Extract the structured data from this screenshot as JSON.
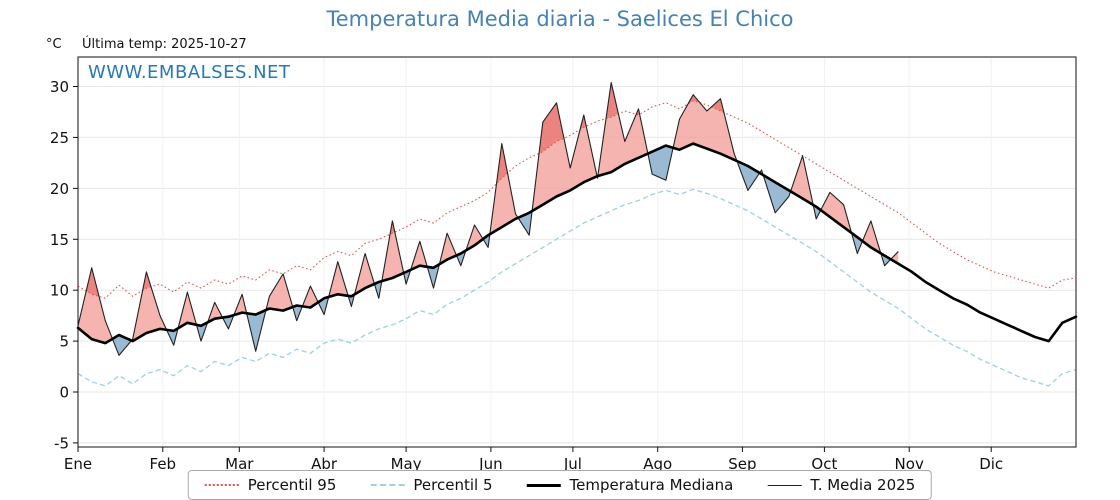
{
  "header": {
    "title": "Temperatura Media diaria - Saelices El Chico",
    "unit_label": "°C",
    "last_temp_label": "Última temp: 2025-10-27"
  },
  "watermark": "WWW.EMBALSES.NET",
  "legend": {
    "items": [
      {
        "label": "Percentil 95"
      },
      {
        "label": "Percentil 5"
      },
      {
        "label": "Temperatura Mediana"
      },
      {
        "label": "T. Media 2025"
      }
    ]
  },
  "colors": {
    "title": "#4682b4",
    "watermark": "#2878b8",
    "p95": "#d9534f",
    "p5": "#9ecfe3",
    "median": "#000000",
    "t2025": "#222222",
    "fill_above": "#f3a19b",
    "fill_above_p95": "#e25b55",
    "fill_below": "#8fb1cd",
    "grid_h": "#e7e7e7",
    "grid_v": "#f1f1f1",
    "frame": "#111111"
  },
  "chart_data": {
    "type": "line",
    "title": "Temperatura Media diaria - Saelices El Chico",
    "ylabel": "°C",
    "xlim_days": [
      0,
      365
    ],
    "ylim": [
      -5.4,
      32.9
    ],
    "y_ticks": [
      -5,
      0,
      5,
      10,
      15,
      20,
      25,
      30
    ],
    "x_tick_days": [
      0,
      31,
      59,
      90,
      120,
      151,
      181,
      212,
      243,
      273,
      304,
      334
    ],
    "x_tick_labels": [
      "Ene",
      "Feb",
      "Mar",
      "Abr",
      "May",
      "Jun",
      "Jul",
      "Ago",
      "Sep",
      "Oct",
      "Nov",
      "Dic"
    ],
    "sample_step_days": 5,
    "legend_position": "bottom",
    "grid": true,
    "series": [
      {
        "name": "Percentil 95",
        "style": "dotted-red",
        "values": [
          10.4,
          9.6,
          9.2,
          10.5,
          9.4,
          10.2,
          10.6,
          9.8,
          10.8,
          10.2,
          11.0,
          10.6,
          11.4,
          11.0,
          12.0,
          11.6,
          12.4,
          12.0,
          13.2,
          13.8,
          13.4,
          14.6,
          15.0,
          15.6,
          16.2,
          17.0,
          16.6,
          17.6,
          18.2,
          18.8,
          19.6,
          21.0,
          22.2,
          23.0,
          23.6,
          24.6,
          25.2,
          26.0,
          26.6,
          27.0,
          27.6,
          27.2,
          28.0,
          28.4,
          27.8,
          28.6,
          28.2,
          27.6,
          27.0,
          26.4,
          25.6,
          24.8,
          24.0,
          23.2,
          22.4,
          21.6,
          20.8,
          20.0,
          19.2,
          18.4,
          17.6,
          16.6,
          15.6,
          14.6,
          13.8,
          13.0,
          12.4,
          11.8,
          11.4,
          11.0,
          10.6,
          10.2,
          11.0,
          11.2
        ]
      },
      {
        "name": "Percentil 5",
        "style": "dashed-lightblue",
        "values": [
          1.8,
          1.0,
          0.6,
          1.6,
          0.8,
          1.8,
          2.2,
          1.6,
          2.6,
          2.0,
          3.0,
          2.6,
          3.4,
          3.0,
          3.8,
          3.4,
          4.2,
          3.8,
          4.8,
          5.2,
          4.8,
          5.6,
          6.2,
          6.6,
          7.2,
          8.0,
          7.6,
          8.6,
          9.2,
          10.0,
          10.8,
          11.8,
          12.6,
          13.4,
          14.2,
          15.0,
          15.8,
          16.6,
          17.2,
          17.8,
          18.4,
          18.8,
          19.4,
          19.8,
          19.4,
          19.9,
          19.5,
          19.0,
          18.4,
          17.8,
          17.0,
          16.2,
          15.4,
          14.6,
          13.8,
          12.8,
          11.8,
          10.8,
          9.8,
          9.0,
          8.2,
          7.2,
          6.2,
          5.4,
          4.6,
          4.0,
          3.2,
          2.6,
          2.0,
          1.4,
          1.0,
          0.6,
          1.8,
          2.2
        ]
      },
      {
        "name": "Temperatura Mediana",
        "style": "thick-black",
        "values": [
          6.3,
          5.2,
          4.8,
          5.6,
          5.0,
          5.8,
          6.2,
          6.0,
          6.8,
          6.5,
          7.2,
          7.4,
          7.8,
          7.6,
          8.2,
          8.0,
          8.5,
          8.3,
          9.2,
          9.6,
          9.4,
          10.2,
          10.8,
          11.2,
          11.8,
          12.4,
          12.2,
          13.0,
          13.6,
          14.4,
          15.4,
          16.2,
          17.0,
          17.6,
          18.4,
          19.2,
          19.8,
          20.6,
          21.2,
          21.6,
          22.4,
          23.0,
          23.6,
          24.2,
          23.8,
          24.4,
          23.9,
          23.4,
          22.8,
          22.2,
          21.4,
          20.6,
          19.8,
          19.0,
          18.2,
          17.2,
          16.2,
          15.2,
          14.2,
          13.4,
          12.6,
          11.8,
          10.8,
          10.0,
          9.2,
          8.6,
          7.8,
          7.2,
          6.6,
          6.0,
          5.4,
          5.0,
          6.8,
          7.4
        ]
      },
      {
        "name": "T. Media 2025",
        "style": "thin-black",
        "ends_day": 300,
        "values": [
          6.5,
          12.2,
          7.0,
          3.6,
          5.2,
          11.8,
          7.5,
          4.6,
          9.8,
          5.0,
          8.8,
          6.2,
          9.6,
          4.0,
          9.4,
          11.6,
          7.0,
          10.4,
          7.6,
          12.8,
          8.4,
          13.6,
          9.2,
          16.8,
          10.6,
          14.8,
          10.2,
          15.6,
          12.4,
          16.4,
          14.2,
          24.4,
          17.5,
          15.4,
          26.5,
          28.4,
          22.0,
          27.2,
          21.0,
          30.4,
          24.6,
          27.8,
          21.4,
          20.8,
          26.8,
          29.2,
          27.6,
          28.8,
          23.4,
          19.8,
          21.8,
          17.6,
          19.2,
          23.2,
          17.0,
          19.6,
          18.4,
          13.6,
          16.8,
          12.4,
          13.8
        ]
      }
    ],
    "fills": {
      "above_median": "red-pink where T. Media 2025 > Temperatura Mediana",
      "below_median": "steel-blue where T. Media 2025 < Temperatura Mediana"
    }
  }
}
